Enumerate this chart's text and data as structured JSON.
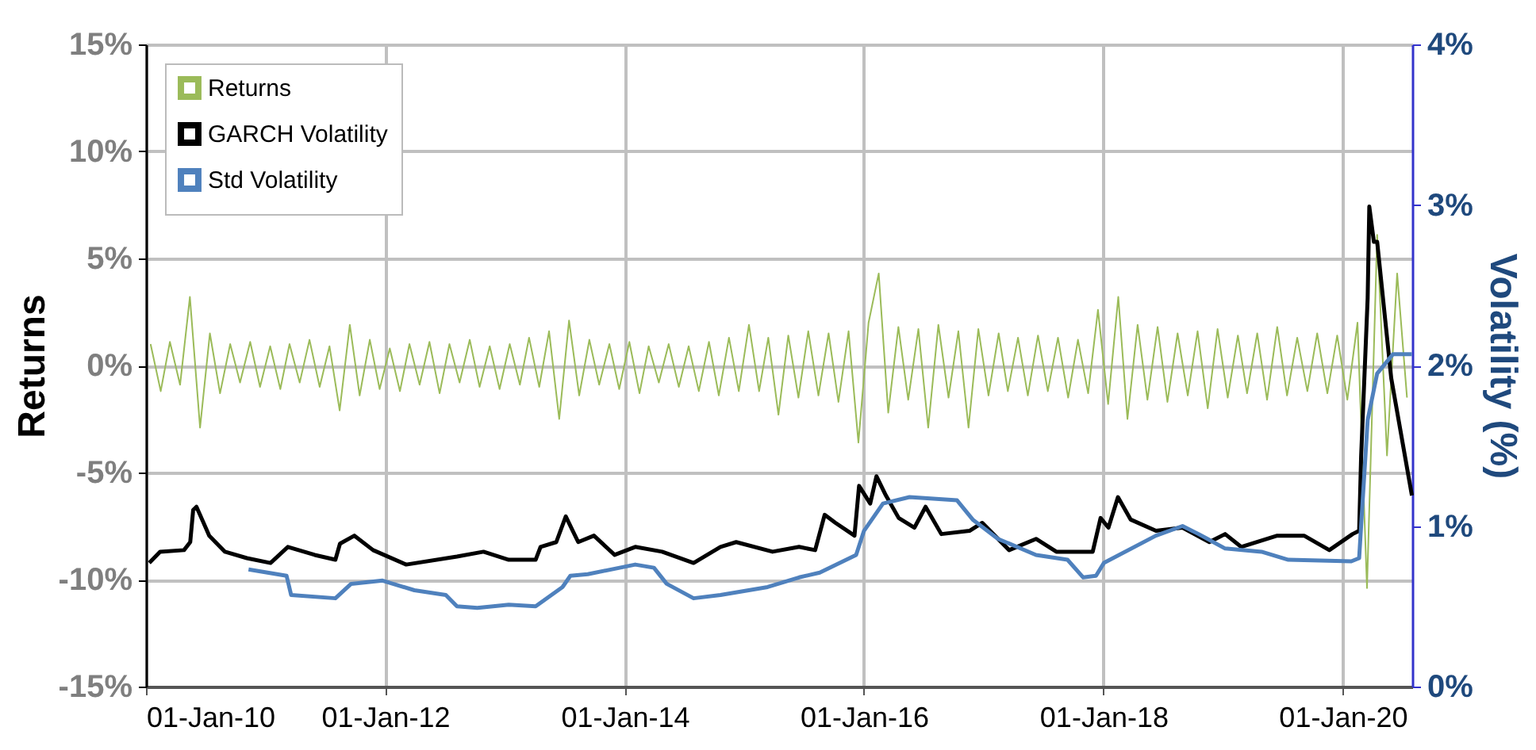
{
  "chart_data": {
    "type": "line",
    "ylabel": "Returns",
    "y2label": "Volatility (%)",
    "xlim": [
      "2010-01-01",
      "2020-07-31"
    ],
    "xticks": [
      {
        "value": "2010-01-01",
        "label": "01-Jan-10"
      },
      {
        "value": "2012-01-01",
        "label": "01-Jan-12"
      },
      {
        "value": "2014-01-01",
        "label": "01-Jan-14"
      },
      {
        "value": "2016-01-01",
        "label": "01-Jan-16"
      },
      {
        "value": "2018-01-01",
        "label": "01-Jan-18"
      },
      {
        "value": "2020-01-01",
        "label": "01-Jan-20"
      }
    ],
    "ylim": [
      -15,
      15
    ],
    "yticks": [
      {
        "value": -15,
        "label": "-15%"
      },
      {
        "value": -10,
        "label": "-10%"
      },
      {
        "value": -5,
        "label": "-5%"
      },
      {
        "value": 0,
        "label": "0%"
      },
      {
        "value": 5,
        "label": "5%"
      },
      {
        "value": 10,
        "label": "10%"
      },
      {
        "value": 15,
        "label": "15%"
      }
    ],
    "y2lim": [
      0,
      4
    ],
    "y2ticks": [
      {
        "value": 0,
        "label": "0%"
      },
      {
        "value": 1,
        "label": "1%"
      },
      {
        "value": 2,
        "label": "2%"
      },
      {
        "value": 3,
        "label": "3%"
      },
      {
        "value": 4,
        "label": "4%"
      }
    ],
    "grid": true,
    "legend": "top left",
    "series": [
      {
        "name": "Returns",
        "color": "#9bbb59",
        "x": [
          "2010-01-15",
          "2010-02-15",
          "2010-03-15",
          "2010-04-15",
          "2010-05-15",
          "2010-06-15",
          "2010-07-15",
          "2010-08-15",
          "2010-09-15",
          "2010-10-15",
          "2010-11-15",
          "2010-12-15",
          "2011-01-15",
          "2011-02-15",
          "2011-03-15",
          "2011-04-15",
          "2011-05-15",
          "2011-06-15",
          "2011-07-15",
          "2011-08-15",
          "2011-09-15",
          "2011-10-15",
          "2011-11-15",
          "2011-12-15",
          "2012-01-15",
          "2012-02-15",
          "2012-03-15",
          "2012-04-15",
          "2012-05-15",
          "2012-06-15",
          "2012-07-15",
          "2012-08-15",
          "2012-09-15",
          "2012-10-15",
          "2012-11-15",
          "2012-12-15",
          "2013-01-15",
          "2013-02-15",
          "2013-03-15",
          "2013-04-15",
          "2013-05-15",
          "2013-06-15",
          "2013-07-15",
          "2013-08-15",
          "2013-09-15",
          "2013-10-15",
          "2013-11-15",
          "2013-12-15",
          "2014-01-15",
          "2014-02-15",
          "2014-03-15",
          "2014-04-15",
          "2014-05-15",
          "2014-06-15",
          "2014-07-15",
          "2014-08-15",
          "2014-09-15",
          "2014-10-15",
          "2014-11-15",
          "2014-12-15",
          "2015-01-15",
          "2015-02-15",
          "2015-03-15",
          "2015-04-15",
          "2015-05-15",
          "2015-06-15",
          "2015-07-15",
          "2015-08-15",
          "2015-09-15",
          "2015-10-15",
          "2015-11-15",
          "2015-12-15",
          "2016-01-15",
          "2016-02-15",
          "2016-03-15",
          "2016-04-15",
          "2016-05-15",
          "2016-06-15",
          "2016-07-15",
          "2016-08-15",
          "2016-09-15",
          "2016-10-15",
          "2016-11-15",
          "2016-12-15",
          "2017-01-15",
          "2017-02-15",
          "2017-03-15",
          "2017-04-15",
          "2017-05-15",
          "2017-06-15",
          "2017-07-15",
          "2017-08-15",
          "2017-09-15",
          "2017-10-15",
          "2017-11-15",
          "2017-12-15",
          "2018-01-15",
          "2018-02-15",
          "2018-03-15",
          "2018-04-15",
          "2018-05-15",
          "2018-06-15",
          "2018-07-15",
          "2018-08-15",
          "2018-09-15",
          "2018-10-15",
          "2018-11-15",
          "2018-12-15",
          "2019-01-15",
          "2019-02-15",
          "2019-03-15",
          "2019-04-15",
          "2019-05-15",
          "2019-06-15",
          "2019-07-15",
          "2019-08-15",
          "2019-09-15",
          "2019-10-15",
          "2019-11-15",
          "2019-12-15",
          "2020-01-15",
          "2020-02-15",
          "2020-03-15",
          "2020-04-15",
          "2020-05-15",
          "2020-06-15",
          "2020-07-15"
        ],
        "values": [
          1.0,
          -1.2,
          1.1,
          -0.9,
          3.2,
          -2.9,
          1.5,
          -1.3,
          1.0,
          -0.8,
          1.1,
          -1.0,
          0.9,
          -1.1,
          1.0,
          -0.8,
          1.2,
          -1.0,
          0.9,
          -2.1,
          1.9,
          -1.4,
          1.2,
          -1.1,
          0.8,
          -1.2,
          1.0,
          -0.9,
          1.1,
          -1.3,
          1.0,
          -0.8,
          1.2,
          -1.0,
          0.9,
          -1.1,
          1.0,
          -0.9,
          1.3,
          -1.0,
          1.6,
          -2.5,
          2.1,
          -1.4,
          1.2,
          -0.9,
          1.0,
          -1.1,
          1.1,
          -1.3,
          0.9,
          -0.8,
          1.0,
          -1.0,
          0.9,
          -1.2,
          1.1,
          -1.4,
          1.3,
          -1.2,
          1.9,
          -1.2,
          1.3,
          -2.3,
          1.4,
          -1.5,
          1.6,
          -1.4,
          1.5,
          -1.7,
          1.6,
          -3.6,
          2.0,
          4.3,
          -2.2,
          1.8,
          -1.6,
          1.7,
          -2.9,
          1.9,
          -1.5,
          1.6,
          -2.9,
          1.7,
          -1.4,
          1.5,
          -1.2,
          1.3,
          -1.4,
          1.4,
          -1.2,
          1.3,
          -1.5,
          1.2,
          -1.3,
          2.6,
          -1.8,
          3.2,
          -2.5,
          1.9,
          -1.6,
          1.8,
          -1.7,
          1.5,
          -1.4,
          1.6,
          -2.0,
          1.7,
          -1.5,
          1.4,
          -1.3,
          1.5,
          -1.6,
          1.8,
          -1.4,
          1.3,
          -1.2,
          1.5,
          -1.3,
          1.4,
          -1.6,
          2.0,
          -10.4,
          6.1,
          -4.2,
          4.3,
          -1.5
        ]
      },
      {
        "name": "GARCH Volatility",
        "color": "#000000",
        "axis": "y2",
        "x": [
          "2010-01-11",
          "2010-02-13",
          "2010-04-27",
          "2010-05-16",
          "2010-05-25",
          "2010-06-04",
          "2010-07-13",
          "2010-08-30",
          "2010-11-05",
          "2011-01-16",
          "2011-03-10",
          "2011-05-31",
          "2011-08-02",
          "2011-08-16",
          "2011-09-29",
          "2011-11-25",
          "2012-03-05",
          "2012-08-07",
          "2012-10-27",
          "2013-01-12",
          "2013-04-04",
          "2013-04-19",
          "2013-06-06",
          "2013-07-05",
          "2013-08-12",
          "2013-09-29",
          "2013-12-01",
          "2014-02-02",
          "2014-04-25",
          "2014-07-30",
          "2014-10-20",
          "2014-12-07",
          "2015-03-28",
          "2015-06-17",
          "2015-08-05",
          "2015-09-03",
          "2015-10-06",
          "2015-12-03",
          "2015-12-17",
          "2016-01-20",
          "2016-02-08",
          "2016-03-08",
          "2016-04-16",
          "2016-06-03",
          "2016-07-07",
          "2016-08-24",
          "2016-11-18",
          "2016-12-27",
          "2017-03-19",
          "2017-06-09",
          "2017-08-10",
          "2017-11-29",
          "2017-12-23",
          "2018-01-16",
          "2018-02-14",
          "2018-03-25",
          "2018-06-10",
          "2018-08-30",
          "2018-11-20",
          "2019-01-07",
          "2019-02-25",
          "2019-06-15",
          "2019-09-05",
          "2019-11-21",
          "2020-01-31",
          "2020-02-20",
          "2020-02-26",
          "2020-03-17",
          "2020-03-22",
          "2020-04-05",
          "2020-04-15",
          "2020-05-28",
          "2020-07-30"
        ],
        "values": [
          0.77,
          0.84,
          0.85,
          0.9,
          1.1,
          1.12,
          0.94,
          0.84,
          0.8,
          0.77,
          0.87,
          0.82,
          0.79,
          0.89,
          0.94,
          0.85,
          0.76,
          0.81,
          0.84,
          0.79,
          0.79,
          0.87,
          0.9,
          1.06,
          0.9,
          0.94,
          0.82,
          0.87,
          0.84,
          0.77,
          0.87,
          0.9,
          0.84,
          0.87,
          0.85,
          1.07,
          1.02,
          0.94,
          1.25,
          1.14,
          1.31,
          1.19,
          1.05,
          0.99,
          1.12,
          0.95,
          0.97,
          1.02,
          0.85,
          0.92,
          0.84,
          0.84,
          1.05,
          0.99,
          1.18,
          1.04,
          0.97,
          0.99,
          0.9,
          0.95,
          0.87,
          0.94,
          0.94,
          0.85,
          0.95,
          0.97,
          1.43,
          2.42,
          2.99,
          2.77,
          2.77,
          1.92,
          1.19
        ]
      },
      {
        "name": "Std Volatility",
        "color": "#4f81bd",
        "axis": "y2",
        "x": [
          "2010-11-10",
          "2011-03-06",
          "2011-03-20",
          "2011-08-02",
          "2011-09-19",
          "2011-12-24",
          "2012-03-30",
          "2012-07-04",
          "2012-08-07",
          "2012-10-08",
          "2013-01-12",
          "2013-04-04",
          "2013-06-25",
          "2013-07-19",
          "2013-09-10",
          "2014-02-02",
          "2014-03-31",
          "2014-05-09",
          "2014-07-30",
          "2014-10-20",
          "2015-03-13",
          "2015-06-17",
          "2015-08-19",
          "2015-12-08",
          "2016-01-01",
          "2016-02-28",
          "2016-05-19",
          "2016-10-11",
          "2016-11-28",
          "2017-02-13",
          "2017-06-09",
          "2017-09-13",
          "2017-10-31",
          "2017-12-09",
          "2018-01-02",
          "2018-06-10",
          "2018-08-30",
          "2018-10-18",
          "2019-01-07",
          "2019-04-28",
          "2019-07-19",
          "2020-01-27",
          "2020-02-20",
          "2020-02-26",
          "2020-03-17",
          "2020-04-15",
          "2020-06-02",
          "2020-07-30"
        ],
        "values": [
          0.73,
          0.69,
          0.57,
          0.55,
          0.64,
          0.66,
          0.6,
          0.57,
          0.5,
          0.49,
          0.51,
          0.5,
          0.62,
          0.69,
          0.7,
          0.76,
          0.74,
          0.64,
          0.55,
          0.57,
          0.62,
          0.68,
          0.71,
          0.82,
          0.97,
          1.14,
          1.18,
          1.16,
          1.04,
          0.92,
          0.82,
          0.79,
          0.68,
          0.69,
          0.77,
          0.94,
          1.0,
          0.95,
          0.86,
          0.84,
          0.79,
          0.78,
          0.8,
          1.0,
          1.66,
          1.95,
          2.07,
          2.07
        ]
      }
    ]
  }
}
